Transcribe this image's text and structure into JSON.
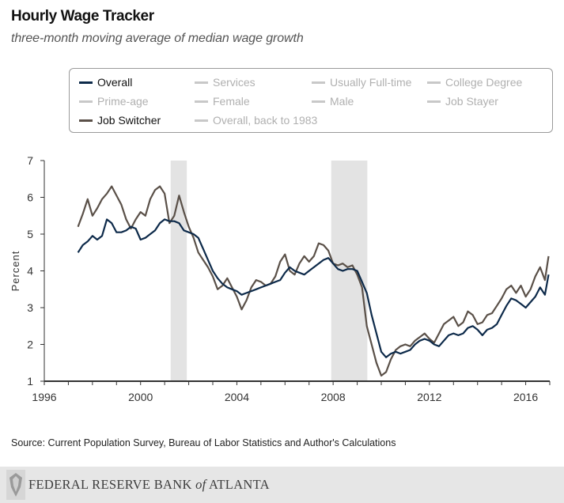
{
  "chart_data": {
    "type": "line",
    "title": "Hourly Wage Tracker",
    "subtitle": "three-month moving average of median wage growth",
    "xlabel": "",
    "ylabel": "Percent",
    "xlim": [
      1996,
      2017
    ],
    "ylim": [
      1,
      7
    ],
    "x_ticks": [
      "1996",
      "2000",
      "2004",
      "2008",
      "2012",
      "2016"
    ],
    "y_ticks": [
      "1",
      "2",
      "3",
      "4",
      "5",
      "6",
      "7"
    ],
    "grid": false,
    "legend_position": "top",
    "legend": [
      {
        "name": "Overall",
        "active": true,
        "color": "#0d2a4a"
      },
      {
        "name": "Services",
        "active": false
      },
      {
        "name": "Usually Full-time",
        "active": false
      },
      {
        "name": "College Degree",
        "active": false
      },
      {
        "name": "Prime-age",
        "active": false
      },
      {
        "name": "Female",
        "active": false
      },
      {
        "name": "Male",
        "active": false
      },
      {
        "name": "Job Stayer",
        "active": false
      },
      {
        "name": "Job Switcher",
        "active": true,
        "color": "#5a5048"
      },
      {
        "name": "Overall, back to 1983",
        "active": false
      }
    ],
    "recessions": [
      [
        2001.25,
        2001.92
      ],
      [
        2007.92,
        2009.42
      ]
    ],
    "series": [
      {
        "name": "Overall",
        "color": "#0d2a4a",
        "points": [
          [
            1997.4,
            4.5
          ],
          [
            1997.6,
            4.7
          ],
          [
            1997.8,
            4.8
          ],
          [
            1998.0,
            4.95
          ],
          [
            1998.2,
            4.85
          ],
          [
            1998.4,
            4.95
          ],
          [
            1998.6,
            5.4
          ],
          [
            1998.8,
            5.3
          ],
          [
            1999.0,
            5.05
          ],
          [
            1999.2,
            5.05
          ],
          [
            1999.4,
            5.1
          ],
          [
            1999.6,
            5.2
          ],
          [
            1999.8,
            5.15
          ],
          [
            2000.0,
            4.85
          ],
          [
            2000.2,
            4.9
          ],
          [
            2000.4,
            5.0
          ],
          [
            2000.6,
            5.1
          ],
          [
            2000.8,
            5.3
          ],
          [
            2001.0,
            5.4
          ],
          [
            2001.2,
            5.35
          ],
          [
            2001.4,
            5.35
          ],
          [
            2001.6,
            5.3
          ],
          [
            2001.8,
            5.1
          ],
          [
            2002.0,
            5.05
          ],
          [
            2002.2,
            5.0
          ],
          [
            2002.4,
            4.9
          ],
          [
            2002.6,
            4.6
          ],
          [
            2002.8,
            4.3
          ],
          [
            2003.0,
            4.0
          ],
          [
            2003.2,
            3.8
          ],
          [
            2003.4,
            3.65
          ],
          [
            2003.6,
            3.55
          ],
          [
            2003.8,
            3.5
          ],
          [
            2004.0,
            3.45
          ],
          [
            2004.2,
            3.35
          ],
          [
            2004.4,
            3.4
          ],
          [
            2004.6,
            3.45
          ],
          [
            2004.8,
            3.5
          ],
          [
            2005.0,
            3.55
          ],
          [
            2005.2,
            3.6
          ],
          [
            2005.4,
            3.65
          ],
          [
            2005.6,
            3.7
          ],
          [
            2005.8,
            3.75
          ],
          [
            2006.0,
            3.95
          ],
          [
            2006.2,
            4.1
          ],
          [
            2006.4,
            4.0
          ],
          [
            2006.6,
            3.95
          ],
          [
            2006.8,
            3.9
          ],
          [
            2007.0,
            4.0
          ],
          [
            2007.2,
            4.1
          ],
          [
            2007.4,
            4.2
          ],
          [
            2007.6,
            4.3
          ],
          [
            2007.8,
            4.35
          ],
          [
            2008.0,
            4.2
          ],
          [
            2008.2,
            4.05
          ],
          [
            2008.4,
            4.0
          ],
          [
            2008.6,
            4.05
          ],
          [
            2008.8,
            4.05
          ],
          [
            2009.0,
            4.0
          ],
          [
            2009.2,
            3.7
          ],
          [
            2009.4,
            3.4
          ],
          [
            2009.6,
            2.8
          ],
          [
            2009.8,
            2.3
          ],
          [
            2010.0,
            1.8
          ],
          [
            2010.2,
            1.65
          ],
          [
            2010.4,
            1.75
          ],
          [
            2010.6,
            1.8
          ],
          [
            2010.8,
            1.75
          ],
          [
            2011.0,
            1.8
          ],
          [
            2011.2,
            1.85
          ],
          [
            2011.4,
            2.0
          ],
          [
            2011.6,
            2.1
          ],
          [
            2011.8,
            2.15
          ],
          [
            2012.0,
            2.1
          ],
          [
            2012.2,
            2.0
          ],
          [
            2012.4,
            1.95
          ],
          [
            2012.6,
            2.1
          ],
          [
            2012.8,
            2.25
          ],
          [
            2013.0,
            2.3
          ],
          [
            2013.2,
            2.25
          ],
          [
            2013.4,
            2.3
          ],
          [
            2013.6,
            2.45
          ],
          [
            2013.8,
            2.5
          ],
          [
            2014.0,
            2.4
          ],
          [
            2014.2,
            2.25
          ],
          [
            2014.4,
            2.4
          ],
          [
            2014.6,
            2.45
          ],
          [
            2014.8,
            2.55
          ],
          [
            2015.0,
            2.8
          ],
          [
            2015.2,
            3.05
          ],
          [
            2015.4,
            3.25
          ],
          [
            2015.6,
            3.2
          ],
          [
            2015.8,
            3.1
          ],
          [
            2016.0,
            3.0
          ],
          [
            2016.2,
            3.15
          ],
          [
            2016.4,
            3.3
          ],
          [
            2016.6,
            3.55
          ],
          [
            2016.8,
            3.35
          ],
          [
            2016.95,
            3.9
          ]
        ]
      },
      {
        "name": "Job Switcher",
        "color": "#5a5048",
        "points": [
          [
            1997.4,
            5.2
          ],
          [
            1997.6,
            5.55
          ],
          [
            1997.8,
            5.95
          ],
          [
            1998.0,
            5.5
          ],
          [
            1998.2,
            5.7
          ],
          [
            1998.4,
            5.95
          ],
          [
            1998.6,
            6.1
          ],
          [
            1998.8,
            6.3
          ],
          [
            1999.0,
            6.05
          ],
          [
            1999.2,
            5.8
          ],
          [
            1999.4,
            5.4
          ],
          [
            1999.6,
            5.15
          ],
          [
            1999.8,
            5.4
          ],
          [
            2000.0,
            5.6
          ],
          [
            2000.2,
            5.5
          ],
          [
            2000.4,
            5.95
          ],
          [
            2000.6,
            6.2
          ],
          [
            2000.8,
            6.3
          ],
          [
            2001.0,
            6.1
          ],
          [
            2001.2,
            5.3
          ],
          [
            2001.4,
            5.5
          ],
          [
            2001.6,
            6.05
          ],
          [
            2001.8,
            5.6
          ],
          [
            2002.0,
            5.2
          ],
          [
            2002.2,
            4.9
          ],
          [
            2002.4,
            4.5
          ],
          [
            2002.6,
            4.3
          ],
          [
            2002.8,
            4.1
          ],
          [
            2003.0,
            3.85
          ],
          [
            2003.2,
            3.5
          ],
          [
            2003.4,
            3.6
          ],
          [
            2003.6,
            3.8
          ],
          [
            2003.8,
            3.55
          ],
          [
            2004.0,
            3.3
          ],
          [
            2004.2,
            2.95
          ],
          [
            2004.4,
            3.2
          ],
          [
            2004.6,
            3.55
          ],
          [
            2004.8,
            3.75
          ],
          [
            2005.0,
            3.7
          ],
          [
            2005.2,
            3.6
          ],
          [
            2005.4,
            3.65
          ],
          [
            2005.6,
            3.85
          ],
          [
            2005.8,
            4.25
          ],
          [
            2006.0,
            4.45
          ],
          [
            2006.2,
            4.0
          ],
          [
            2006.4,
            3.9
          ],
          [
            2006.6,
            4.2
          ],
          [
            2006.8,
            4.4
          ],
          [
            2007.0,
            4.25
          ],
          [
            2007.2,
            4.4
          ],
          [
            2007.4,
            4.75
          ],
          [
            2007.6,
            4.7
          ],
          [
            2007.8,
            4.55
          ],
          [
            2008.0,
            4.2
          ],
          [
            2008.2,
            4.15
          ],
          [
            2008.4,
            4.2
          ],
          [
            2008.6,
            4.1
          ],
          [
            2008.8,
            4.15
          ],
          [
            2009.0,
            3.9
          ],
          [
            2009.2,
            3.55
          ],
          [
            2009.4,
            2.5
          ],
          [
            2009.6,
            2.0
          ],
          [
            2009.8,
            1.5
          ],
          [
            2010.0,
            1.15
          ],
          [
            2010.2,
            1.25
          ],
          [
            2010.4,
            1.6
          ],
          [
            2010.6,
            1.85
          ],
          [
            2010.8,
            1.95
          ],
          [
            2011.0,
            2.0
          ],
          [
            2011.2,
            1.95
          ],
          [
            2011.4,
            2.1
          ],
          [
            2011.6,
            2.2
          ],
          [
            2011.8,
            2.3
          ],
          [
            2012.0,
            2.15
          ],
          [
            2012.2,
            2.05
          ],
          [
            2012.4,
            2.3
          ],
          [
            2012.6,
            2.55
          ],
          [
            2012.8,
            2.65
          ],
          [
            2013.0,
            2.75
          ],
          [
            2013.2,
            2.5
          ],
          [
            2013.4,
            2.6
          ],
          [
            2013.6,
            2.9
          ],
          [
            2013.8,
            2.8
          ],
          [
            2014.0,
            2.55
          ],
          [
            2014.2,
            2.6
          ],
          [
            2014.4,
            2.8
          ],
          [
            2014.6,
            2.85
          ],
          [
            2014.8,
            3.05
          ],
          [
            2015.0,
            3.25
          ],
          [
            2015.2,
            3.5
          ],
          [
            2015.4,
            3.6
          ],
          [
            2015.6,
            3.4
          ],
          [
            2015.8,
            3.6
          ],
          [
            2016.0,
            3.3
          ],
          [
            2016.2,
            3.5
          ],
          [
            2016.4,
            3.85
          ],
          [
            2016.6,
            4.1
          ],
          [
            2016.8,
            3.75
          ],
          [
            2016.95,
            4.4
          ]
        ]
      }
    ]
  },
  "source": "Source: Current Population Survey, Bureau of Labor Statistics and Author's Calculations",
  "footer": {
    "bank_name_a": "FEDERAL RESERVE BANK ",
    "bank_name_of": "of",
    "bank_name_b": " ATLANTA"
  },
  "colors": {
    "recession": "#e3e3e3",
    "axis": "#333333",
    "footer_bg": "#e6e6e6"
  }
}
